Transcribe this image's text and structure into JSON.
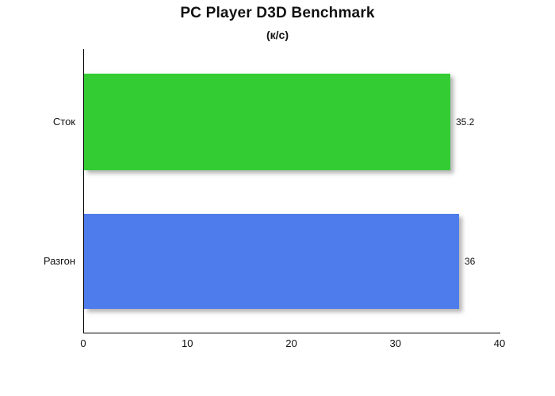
{
  "chart_data": {
    "type": "bar",
    "orientation": "horizontal",
    "title": "PC Player D3D Benchmark",
    "subtitle": "(к/с)",
    "categories": [
      "Сток",
      "Разгон"
    ],
    "values": [
      35.2,
      36
    ],
    "value_labels": [
      "35.2",
      "36"
    ],
    "bar_colors": [
      "#33cc33",
      "#4f7cec"
    ],
    "xlabel": "",
    "ylabel": "",
    "xlim": [
      0,
      40
    ],
    "x_ticks": [
      0,
      10,
      20,
      30,
      40
    ],
    "grid": "off",
    "legend": "none",
    "axis_color": "#000000",
    "background_color": "#ffffff"
  }
}
